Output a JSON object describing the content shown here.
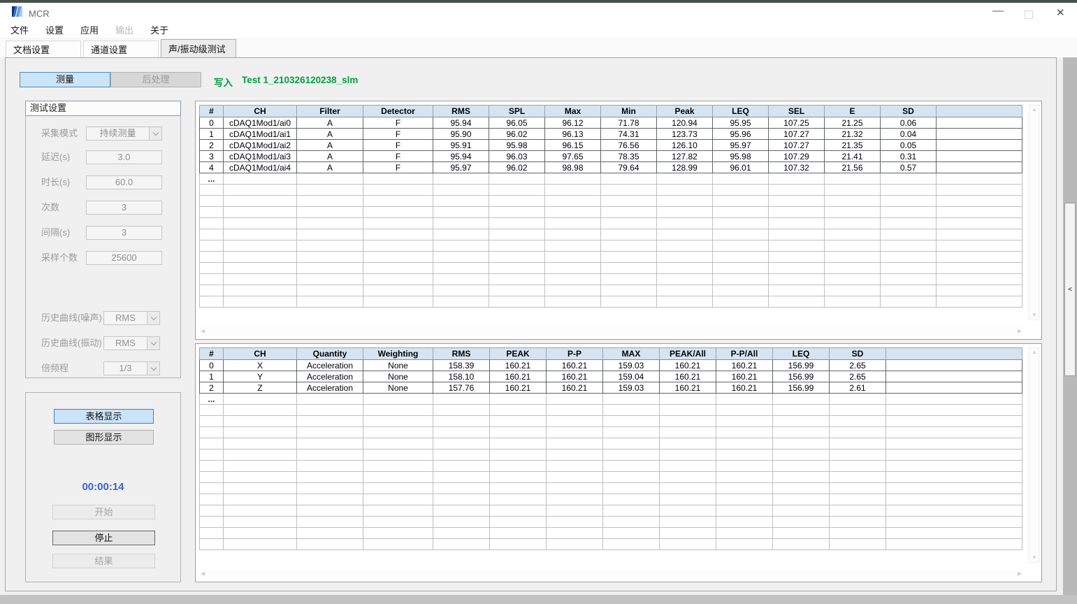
{
  "window": {
    "title": "MCR",
    "controls": {
      "minimize": "—",
      "close": "✕"
    }
  },
  "menu": {
    "items": [
      {
        "label": "文件",
        "enabled": true
      },
      {
        "label": "设置",
        "enabled": true
      },
      {
        "label": "应用",
        "enabled": true
      },
      {
        "label": "输出",
        "enabled": false
      },
      {
        "label": "关于",
        "enabled": true
      }
    ]
  },
  "tabs": [
    {
      "label": "文档设置",
      "active": false
    },
    {
      "label": "通道设置",
      "active": false
    },
    {
      "label": "声/振动级测试",
      "active": true
    }
  ],
  "toolbar": {
    "measure_label": "测量",
    "post_process_label": "后处理",
    "write_label": "写入",
    "file_name": "Test 1_210326120238_slm"
  },
  "settings": {
    "title": "测试设置",
    "fields": [
      {
        "label": "采集模式",
        "value": "持续测量",
        "control": "dropdown"
      },
      {
        "label": "延迟(s)",
        "value": "3.0",
        "control": "input"
      },
      {
        "label": "时长(s)",
        "value": "60.0",
        "control": "input"
      },
      {
        "label": "次数",
        "value": "3",
        "control": "input"
      },
      {
        "label": "间隔(s)",
        "value": "3",
        "control": "input"
      },
      {
        "label": "采样个数",
        "value": "25600",
        "control": "input"
      },
      {
        "label": "历史曲线(噪声)",
        "value": "RMS",
        "control": "dropdown"
      },
      {
        "label": "历史曲线(振动)",
        "value": "RMS",
        "control": "dropdown"
      },
      {
        "label": "倍频程",
        "value": "1/3",
        "control": "dropdown"
      }
    ]
  },
  "run_controls": {
    "table_display": "表格显示",
    "graph_display": "图形显示",
    "timer": "00:00:14",
    "start": "开始",
    "stop": "停止",
    "result": "结果"
  },
  "sound_table": {
    "columns": [
      "#",
      "CH",
      "Filter",
      "Detector",
      "RMS",
      "SPL",
      "Max",
      "Min",
      "Peak",
      "LEQ",
      "SEL",
      "E",
      "SD"
    ],
    "rows": [
      [
        "0",
        "cDAQ1Mod1/ai0",
        "A",
        "F",
        "95.94",
        "96.05",
        "96.12",
        "71.78",
        "120.94",
        "95.95",
        "107.25",
        "21.25",
        "0.06"
      ],
      [
        "1",
        "cDAQ1Mod1/ai1",
        "A",
        "F",
        "95.90",
        "96.02",
        "96.13",
        "74.31",
        "123.73",
        "95.96",
        "107.27",
        "21.32",
        "0.04"
      ],
      [
        "2",
        "cDAQ1Mod1/ai2",
        "A",
        "F",
        "95.91",
        "95.98",
        "96.15",
        "76.56",
        "126.10",
        "95.97",
        "107.27",
        "21.35",
        "0.05"
      ],
      [
        "3",
        "cDAQ1Mod1/ai3",
        "A",
        "F",
        "95.94",
        "96.03",
        "97.65",
        "78.35",
        "127.82",
        "95.98",
        "107.29",
        "21.41",
        "0.31"
      ],
      [
        "4",
        "cDAQ1Mod1/ai4",
        "A",
        "F",
        "95.97",
        "96.02",
        "98.98",
        "79.64",
        "128.99",
        "96.01",
        "107.32",
        "21.56",
        "0.57"
      ]
    ],
    "ellipsis": "..."
  },
  "vibration_table": {
    "columns": [
      "#",
      "CH",
      "Quantity",
      "Weighting",
      "RMS",
      "PEAK",
      "P-P",
      "MAX",
      "PEAK/All",
      "P-P/All",
      "LEQ",
      "SD"
    ],
    "rows": [
      [
        "0",
        "X",
        "Acceleration",
        "None",
        "158.39",
        "160.21",
        "160.21",
        "159.03",
        "160.21",
        "160.21",
        "156.99",
        "2.65"
      ],
      [
        "1",
        "Y",
        "Acceleration",
        "None",
        "158.10",
        "160.21",
        "160.21",
        "159.04",
        "160.21",
        "160.21",
        "156.99",
        "2.65"
      ],
      [
        "2",
        "Z",
        "Acceleration",
        "None",
        "157.76",
        "160.21",
        "160.21",
        "159.03",
        "160.21",
        "160.21",
        "156.99",
        "2.61"
      ]
    ],
    "ellipsis": "..."
  },
  "side_panel": {
    "collapse_label": "<"
  },
  "icons": {
    "up": "▲",
    "down": "▼",
    "left": "◀",
    "right": "▶"
  },
  "colors": {
    "accent_green": "#00a040",
    "timer_blue": "#3465d0",
    "header_blue": "#d6e4f2",
    "selected_button_blue": "#cce4f7",
    "title_border_blue": "#7f9db9"
  }
}
